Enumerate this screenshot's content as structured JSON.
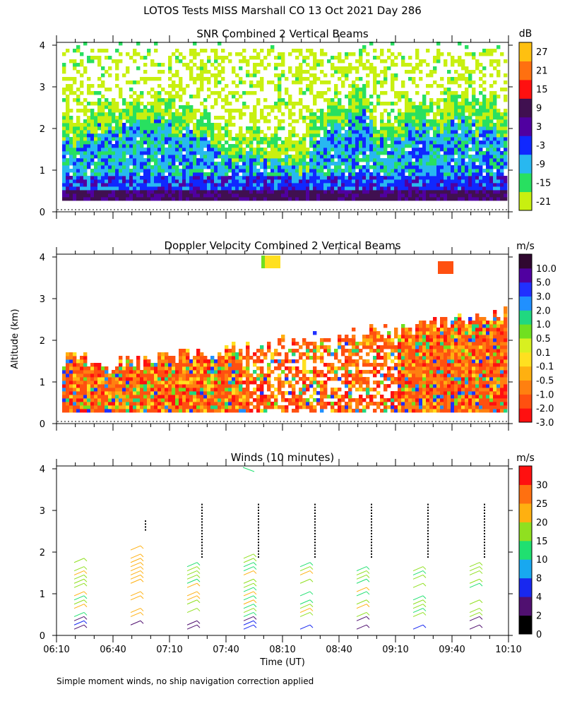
{
  "figure_title": "LOTOS Tests MISS Marshall CO  13 Oct 2021 Day 286",
  "footnote": "Simple moment winds, no ship navigation correction applied",
  "shared_ylabel": "Altitude (km)",
  "xlabel": "Time (UT)",
  "chart_data": [
    {
      "type": "heatmap",
      "title": "SNR Combined 2 Vertical Beams",
      "ylim": [
        0,
        4
      ],
      "yticks": [
        "0",
        "1",
        "2",
        "3",
        "4"
      ],
      "xlim_minutes": [
        370,
        610
      ],
      "colorbar": {
        "unit": "dB",
        "labels": [
          "-21",
          "-15",
          "-9",
          "-3",
          "3",
          "9",
          "15",
          "21",
          "27"
        ],
        "colors": [
          "#c8f010",
          "#28e060",
          "#28b8f0",
          "#1028ff",
          "#5000a0",
          "#401050",
          "#ff1010",
          "#ff7010",
          "#ffc010"
        ]
      }
    },
    {
      "type": "heatmap",
      "title": "Doppler Velocity Combined 2 Vertical Beams",
      "ylim": [
        0,
        4
      ],
      "yticks": [
        "0",
        "1",
        "2",
        "3",
        "4"
      ],
      "xlim_minutes": [
        370,
        610
      ],
      "colorbar": {
        "unit": "m/s",
        "labels": [
          "-3.0",
          "-2.0",
          "-1.0",
          "-0.5",
          "-0.1",
          "0.1",
          "0.5",
          "1.0",
          "2.0",
          "3.0",
          "5.0",
          "10.0"
        ],
        "colors": [
          "#ff1010",
          "#ff5010",
          "#ff8010",
          "#ffb010",
          "#ffe020",
          "#d8f020",
          "#70e020",
          "#20d880",
          "#2090ff",
          "#2030ff",
          "#5000a0",
          "#300830"
        ]
      }
    },
    {
      "type": "scatter",
      "title": "Winds (10 minutes)",
      "ylim": [
        0,
        4
      ],
      "yticks": [
        "0",
        "1",
        "2",
        "3",
        "4"
      ],
      "xlim_minutes": [
        370,
        610
      ],
      "xticks": [
        "06:10",
        "06:40",
        "07:10",
        "07:40",
        "08:10",
        "08:40",
        "09:10",
        "09:40",
        "10:10"
      ],
      "profile_times_minutes": [
        385,
        415,
        445,
        475,
        505,
        535,
        565,
        595
      ],
      "colorbar": {
        "unit": "m/s",
        "labels": [
          "0",
          "2",
          "4",
          "8",
          "10",
          "15",
          "20",
          "25",
          "30"
        ],
        "colors": [
          "#000000",
          "#501070",
          "#1828f0",
          "#18a8f0",
          "#20e070",
          "#90e020",
          "#ffb010",
          "#ff7010",
          "#ff1010"
        ]
      }
    }
  ]
}
